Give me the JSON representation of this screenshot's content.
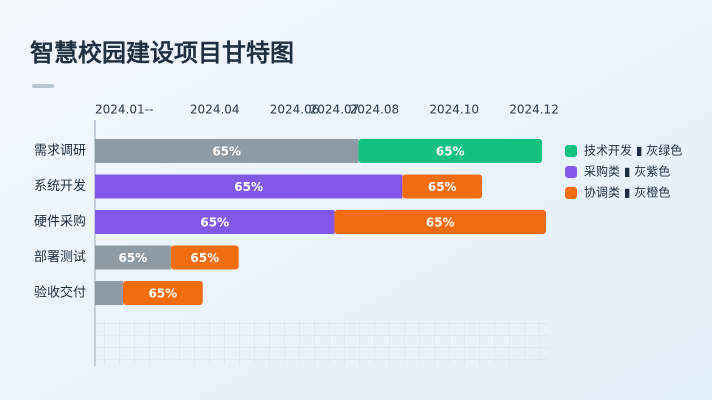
{
  "chart_data": {
    "type": "gantt",
    "title": "智慧校园建设项目甘特图",
    "categories": [
      "需求调研",
      "系统开发",
      "硬件采购",
      "部署测试",
      "验收交付"
    ],
    "xlim": [
      1,
      12.3
    ],
    "xticks": [
      {
        "value": 1,
        "label": "2024.01--"
      },
      {
        "value": 4,
        "label": "2024.04"
      },
      {
        "value": 6,
        "label": "2024.06"
      },
      {
        "value": 7,
        "label": "2024.07"
      },
      {
        "value": 8,
        "label": "2024.08"
      },
      {
        "value": 10,
        "label": "2024.10"
      },
      {
        "value": 12,
        "label": "2024.12"
      }
    ],
    "series": [
      {
        "color": "#8e9ba4",
        "values": [
          6.6,
          null,
          null,
          1.9,
          0.7
        ],
        "segment_labels": [
          "65%",
          null,
          null,
          "65%",
          null
        ]
      },
      {
        "name": "采购类 ▮ 灰紫色",
        "color": "#8358e8",
        "values": [
          null,
          7.7,
          6.0,
          null,
          null
        ],
        "segment_labels": [
          null,
          "65%",
          "65%",
          null,
          null
        ]
      },
      {
        "name": "技术开发 ▮ 灰绿色",
        "color": "#12c07f",
        "values": [
          4.6,
          null,
          null,
          null,
          null
        ],
        "segment_labels": [
          "65%",
          null,
          null,
          null,
          null
        ]
      },
      {
        "name": "协调类 ▮ 灰橙色",
        "color": "#f26d0f",
        "values": [
          null,
          2.0,
          5.3,
          1.7,
          2.0
        ],
        "segment_labels": [
          null,
          "65%",
          "65%",
          "65%",
          "65%"
        ]
      }
    ],
    "legend_order": [
      2,
      1,
      3
    ]
  }
}
